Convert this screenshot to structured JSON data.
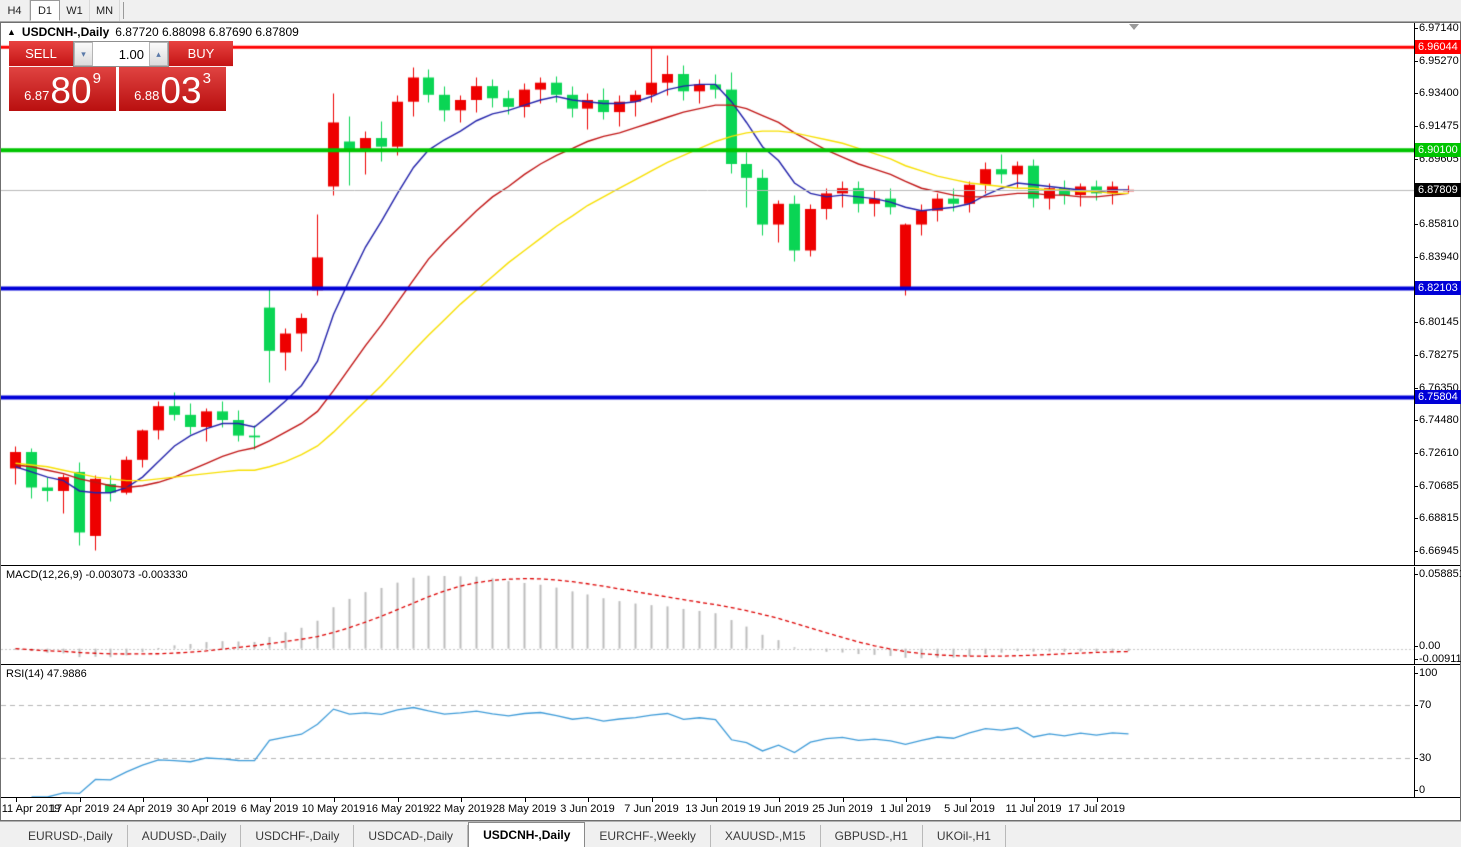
{
  "toolbar": {
    "timeframes": [
      {
        "label": "H4",
        "active": false
      },
      {
        "label": "D1",
        "active": true
      },
      {
        "label": "W1",
        "active": false
      },
      {
        "label": "MN",
        "active": false
      }
    ]
  },
  "chart": {
    "collapse_icon": "▲",
    "title_symbol": "USDCNH-,Daily",
    "title_ohlc": "6.87720 6.88098 6.87690 6.87809"
  },
  "trade_panel": {
    "sell_label": "SELL",
    "buy_label": "BUY",
    "volume": "1.00",
    "spin_down_icon": "▾",
    "spin_up_icon": "▴",
    "sell_price_small": "6.87",
    "sell_price_big": "80",
    "sell_price_sup": "9",
    "buy_price_small": "6.88",
    "buy_price_big": "03",
    "buy_price_sup": "3"
  },
  "price_axis": {
    "plain_labels": [
      "6.97140",
      "6.95270",
      "6.93400",
      "6.91475",
      "6.89605",
      "6.85810",
      "6.83940",
      "6.80145",
      "6.78275",
      "6.76350",
      "6.74480",
      "6.72610",
      "6.70685",
      "6.68815",
      "6.66945"
    ],
    "marked_labels": [
      {
        "value": "6.96044",
        "color": "#ff0000"
      },
      {
        "value": "6.90100",
        "color": "#00c400"
      },
      {
        "value": "6.87809",
        "color": "#000000"
      },
      {
        "value": "6.82103",
        "color": "#0000d7"
      },
      {
        "value": "6.75804",
        "color": "#0000d7"
      }
    ]
  },
  "indicators": {
    "macd": {
      "label": "MACD(12,26,9) -0.003073 -0.003330",
      "axis": {
        "top": "0.058851",
        "zero": "0.00",
        "bottom": "-0.009116"
      }
    },
    "rsi": {
      "label": "RSI(14) 47.9886",
      "axis_values": [
        "100",
        "70",
        "30",
        "0"
      ]
    }
  },
  "date_axis": {
    "labels": [
      {
        "text": "11 Apr 2019",
        "i": 0
      },
      {
        "text": "17 Apr 2019",
        "i": 4
      },
      {
        "text": "24 Apr 2019",
        "i": 8
      },
      {
        "text": "30 Apr 2019",
        "i": 12
      },
      {
        "text": "6 May 2019",
        "i": 16
      },
      {
        "text": "10 May 2019",
        "i": 20
      },
      {
        "text": "16 May 2019",
        "i": 24
      },
      {
        "text": "22 May 2019",
        "i": 28
      },
      {
        "text": "28 May 2019",
        "i": 32
      },
      {
        "text": "3 Jun 2019",
        "i": 36
      },
      {
        "text": "7 Jun 2019",
        "i": 40
      },
      {
        "text": "13 Jun 2019",
        "i": 44
      },
      {
        "text": "19 Jun 2019",
        "i": 48
      },
      {
        "text": "25 Jun 2019",
        "i": 52
      },
      {
        "text": "1 Jul 2019",
        "i": 56
      },
      {
        "text": "5 Jul 2019",
        "i": 60
      },
      {
        "text": "11 Jul 2019",
        "i": 64
      },
      {
        "text": "17 Jul 2019",
        "i": 68
      }
    ]
  },
  "tabs": [
    {
      "label": "EURUSD-,Daily",
      "active": false
    },
    {
      "label": "AUDUSD-,Daily",
      "active": false
    },
    {
      "label": "USDCHF-,Daily",
      "active": false
    },
    {
      "label": "USDCAD-,Daily",
      "active": false
    },
    {
      "label": "USDCNH-,Daily",
      "active": true
    },
    {
      "label": "EURCHF-,Weekly",
      "active": false
    },
    {
      "label": "XAUUSD-,M15",
      "active": false
    },
    {
      "label": "GBPUSD-,H1",
      "active": false
    },
    {
      "label": "UKOil-,H1",
      "active": false
    }
  ],
  "chart_data": {
    "type": "candlestick",
    "symbol": "USDCNH",
    "timeframe": "Daily",
    "title": "USDCNH-,Daily",
    "price_range": {
      "top": 6.9745,
      "bottom": 6.6612
    },
    "up_color": "#ee0000",
    "down_color": "#0ad554",
    "current_price": 6.87809,
    "last_bar": {
      "open": 6.8772,
      "high": 6.88098,
      "low": 6.8769,
      "close": 6.87809
    },
    "hlines": [
      {
        "price": 6.96044,
        "color": "#ff0000",
        "width": 3
      },
      {
        "price": 6.901,
        "color": "#00c400",
        "width": 4
      },
      {
        "price": 6.82103,
        "color": "#0000d7",
        "width": 4
      },
      {
        "price": 6.75804,
        "color": "#0000d7",
        "width": 4
      }
    ],
    "ohlc": [
      [
        "2019-04-11",
        6.717,
        6.73,
        6.708,
        6.7265
      ],
      [
        "2019-04-12",
        6.7265,
        6.729,
        6.7,
        6.706
      ],
      [
        "2019-04-15",
        6.706,
        6.712,
        6.698,
        6.704
      ],
      [
        "2019-04-16",
        6.704,
        6.714,
        6.691,
        6.712
      ],
      [
        "2019-04-17",
        6.715,
        6.721,
        6.673,
        6.68
      ],
      [
        "2019-04-18",
        6.678,
        6.713,
        6.67,
        6.711
      ],
      [
        "2019-04-22",
        6.708,
        6.713,
        6.698,
        6.703
      ],
      [
        "2019-04-23",
        6.703,
        6.724,
        6.702,
        6.722
      ],
      [
        "2019-04-24",
        6.722,
        6.74,
        6.718,
        6.739
      ],
      [
        "2019-04-25",
        6.739,
        6.756,
        6.734,
        6.753
      ],
      [
        "2019-04-26",
        6.753,
        6.761,
        6.745,
        6.748
      ],
      [
        "2019-04-29",
        6.748,
        6.755,
        6.737,
        6.741
      ],
      [
        "2019-04-30",
        6.741,
        6.752,
        6.733,
        6.75
      ],
      [
        "2019-05-01",
        6.75,
        6.756,
        6.741,
        6.745
      ],
      [
        "2019-05-02",
        6.745,
        6.751,
        6.733,
        6.736
      ],
      [
        "2019-05-03",
        6.736,
        6.742,
        6.728,
        6.735
      ],
      [
        "2019-05-06",
        6.81,
        6.822,
        6.767,
        6.785
      ],
      [
        "2019-05-07",
        6.784,
        6.798,
        6.774,
        6.795
      ],
      [
        "2019-05-08",
        6.795,
        6.807,
        6.785,
        6.804
      ],
      [
        "2019-05-09",
        6.82,
        6.864,
        6.817,
        6.839
      ],
      [
        "2019-05-10",
        6.88,
        6.934,
        6.875,
        6.917
      ],
      [
        "2019-05-13",
        6.906,
        6.921,
        6.881,
        6.9
      ],
      [
        "2019-05-14",
        6.9,
        6.912,
        6.887,
        6.908
      ],
      [
        "2019-05-15",
        6.908,
        6.918,
        6.895,
        6.903
      ],
      [
        "2019-05-16",
        6.903,
        6.933,
        6.898,
        6.929
      ],
      [
        "2019-05-17",
        6.929,
        6.949,
        6.921,
        6.943
      ],
      [
        "2019-05-20",
        6.943,
        6.948,
        6.929,
        6.933
      ],
      [
        "2019-05-21",
        6.933,
        6.938,
        6.918,
        6.924
      ],
      [
        "2019-05-22",
        6.924,
        6.933,
        6.917,
        6.93
      ],
      [
        "2019-05-23",
        6.93,
        6.943,
        6.923,
        6.938
      ],
      [
        "2019-05-24",
        6.938,
        6.942,
        6.926,
        6.931
      ],
      [
        "2019-05-27",
        6.931,
        6.936,
        6.922,
        6.926
      ],
      [
        "2019-05-28",
        6.926,
        6.94,
        6.92,
        6.936
      ],
      [
        "2019-05-29",
        6.936,
        6.943,
        6.928,
        6.94
      ],
      [
        "2019-05-30",
        6.94,
        6.944,
        6.929,
        6.933
      ],
      [
        "2019-05-31",
        6.933,
        6.938,
        6.92,
        6.925
      ],
      [
        "2019-06-03",
        6.925,
        6.934,
        6.913,
        6.93
      ],
      [
        "2019-06-04",
        6.93,
        6.937,
        6.919,
        6.923
      ],
      [
        "2019-06-05",
        6.923,
        6.933,
        6.915,
        6.929
      ],
      [
        "2019-06-06",
        6.929,
        6.936,
        6.921,
        6.933
      ],
      [
        "2019-06-07",
        6.933,
        6.961,
        6.929,
        6.94
      ],
      [
        "2019-06-10",
        6.94,
        6.956,
        6.933,
        6.945
      ],
      [
        "2019-06-11",
        6.945,
        6.95,
        6.93,
        6.935
      ],
      [
        "2019-06-12",
        6.935,
        6.942,
        6.928,
        6.939
      ],
      [
        "2019-06-13",
        6.939,
        6.945,
        6.931,
        6.936
      ],
      [
        "2019-06-14",
        6.936,
        6.946,
        6.888,
        6.893
      ],
      [
        "2019-06-17",
        6.893,
        6.9,
        6.868,
        6.885
      ],
      [
        "2019-06-18",
        6.885,
        6.89,
        6.852,
        6.858
      ],
      [
        "2019-06-19",
        6.858,
        6.872,
        6.848,
        6.87
      ],
      [
        "2019-06-20",
        6.87,
        6.875,
        6.837,
        6.843
      ],
      [
        "2019-06-21",
        6.843,
        6.87,
        6.84,
        6.867
      ],
      [
        "2019-06-24",
        6.867,
        6.879,
        6.861,
        6.876
      ],
      [
        "2019-06-25",
        6.876,
        6.883,
        6.868,
        6.879
      ],
      [
        "2019-06-26",
        6.879,
        6.883,
        6.865,
        6.87
      ],
      [
        "2019-06-27",
        6.87,
        6.878,
        6.863,
        6.873
      ],
      [
        "2019-06-28",
        6.873,
        6.879,
        6.864,
        6.868
      ],
      [
        "2019-07-01",
        6.821,
        6.859,
        6.817,
        6.858
      ],
      [
        "2019-07-02",
        6.858,
        6.87,
        6.852,
        6.866
      ],
      [
        "2019-07-03",
        6.866,
        6.876,
        6.86,
        6.873
      ],
      [
        "2019-07-04",
        6.873,
        6.879,
        6.866,
        6.87
      ],
      [
        "2019-07-05",
        6.87,
        6.883,
        6.865,
        6.881
      ],
      [
        "2019-07-08",
        6.881,
        6.894,
        6.876,
        6.89
      ],
      [
        "2019-07-09",
        6.89,
        6.899,
        6.882,
        6.887
      ],
      [
        "2019-07-10",
        6.887,
        6.895,
        6.879,
        6.892
      ],
      [
        "2019-07-11",
        6.892,
        6.896,
        6.868,
        6.873
      ],
      [
        "2019-07-12",
        6.873,
        6.882,
        6.867,
        6.879
      ],
      [
        "2019-07-15",
        6.879,
        6.884,
        6.87,
        6.875
      ],
      [
        "2019-07-16",
        6.875,
        6.882,
        6.869,
        6.88
      ],
      [
        "2019-07-17",
        6.88,
        6.884,
        6.872,
        6.876
      ],
      [
        "2019-07-18",
        6.876,
        6.883,
        6.87,
        6.88
      ],
      [
        "2019-07-19",
        6.8772,
        6.88098,
        6.8769,
        6.87809
      ]
    ],
    "moving_averages": [
      {
        "name": "fast",
        "color": "#2222aa",
        "values": [
          6.718,
          6.715,
          6.712,
          6.71,
          6.704,
          6.703,
          6.703,
          6.706,
          6.712,
          6.721,
          6.73,
          6.736,
          6.74,
          6.743,
          6.743,
          6.741,
          6.748,
          6.756,
          6.765,
          6.779,
          6.806,
          6.826,
          6.845,
          6.86,
          6.876,
          6.891,
          6.901,
          6.907,
          6.912,
          6.918,
          6.922,
          6.924,
          6.927,
          6.93,
          6.932,
          6.93,
          6.929,
          6.928,
          6.928,
          6.929,
          6.932,
          6.936,
          6.938,
          6.939,
          6.939,
          6.929,
          6.917,
          6.903,
          6.895,
          6.882,
          6.876,
          6.874,
          6.875,
          6.874,
          6.873,
          6.871,
          6.868,
          6.866,
          6.867,
          6.868,
          6.87,
          6.875,
          6.879,
          6.882,
          6.881,
          6.88,
          6.879,
          6.878,
          6.877,
          6.878,
          6.878
        ]
      },
      {
        "name": "medium",
        "color": "#c01414",
        "values": [
          6.719,
          6.718,
          6.716,
          6.714,
          6.711,
          6.709,
          6.707,
          6.706,
          6.707,
          6.709,
          6.712,
          6.716,
          6.72,
          6.724,
          6.727,
          6.729,
          6.733,
          6.738,
          6.743,
          6.75,
          6.762,
          6.775,
          6.788,
          6.8,
          6.813,
          6.826,
          6.838,
          6.848,
          6.857,
          6.866,
          6.874,
          6.88,
          6.887,
          6.893,
          6.898,
          6.902,
          6.906,
          6.909,
          6.911,
          6.914,
          6.917,
          6.92,
          6.923,
          6.925,
          6.927,
          6.927,
          6.925,
          6.921,
          6.917,
          6.911,
          6.906,
          6.901,
          6.897,
          6.893,
          6.89,
          6.887,
          6.883,
          6.879,
          6.877,
          6.875,
          6.874,
          6.874,
          6.875,
          6.876,
          6.876,
          6.875,
          6.875,
          6.874,
          6.874,
          6.875,
          6.876
        ]
      },
      {
        "name": "slow",
        "color": "#f7df00",
        "values": [
          6.72,
          6.719,
          6.718,
          6.716,
          6.714,
          6.712,
          6.711,
          6.71,
          6.71,
          6.711,
          6.712,
          6.713,
          6.714,
          6.715,
          6.716,
          6.716,
          6.718,
          6.721,
          6.725,
          6.73,
          6.738,
          6.747,
          6.756,
          6.765,
          6.775,
          6.785,
          6.794,
          6.803,
          6.812,
          6.82,
          6.828,
          6.836,
          6.843,
          6.85,
          6.857,
          6.863,
          6.869,
          6.874,
          6.879,
          6.884,
          6.889,
          6.894,
          6.898,
          6.902,
          6.906,
          6.909,
          6.911,
          6.912,
          6.912,
          6.911,
          6.909,
          6.907,
          6.905,
          6.902,
          6.899,
          6.896,
          6.892,
          6.889,
          6.886,
          6.884,
          6.882,
          6.881,
          6.88,
          6.879,
          6.879,
          6.878,
          6.878,
          6.877,
          6.877,
          6.876,
          6.876
        ]
      }
    ],
    "macd": {
      "params": [
        12,
        26,
        9
      ],
      "current_macd": -0.003073,
      "current_signal": -0.00333,
      "axis_max": 0.058851,
      "axis_min": -0.009116
    },
    "rsi": {
      "period": 14,
      "current_value": 47.9886,
      "levels": [
        70,
        30
      ]
    }
  }
}
